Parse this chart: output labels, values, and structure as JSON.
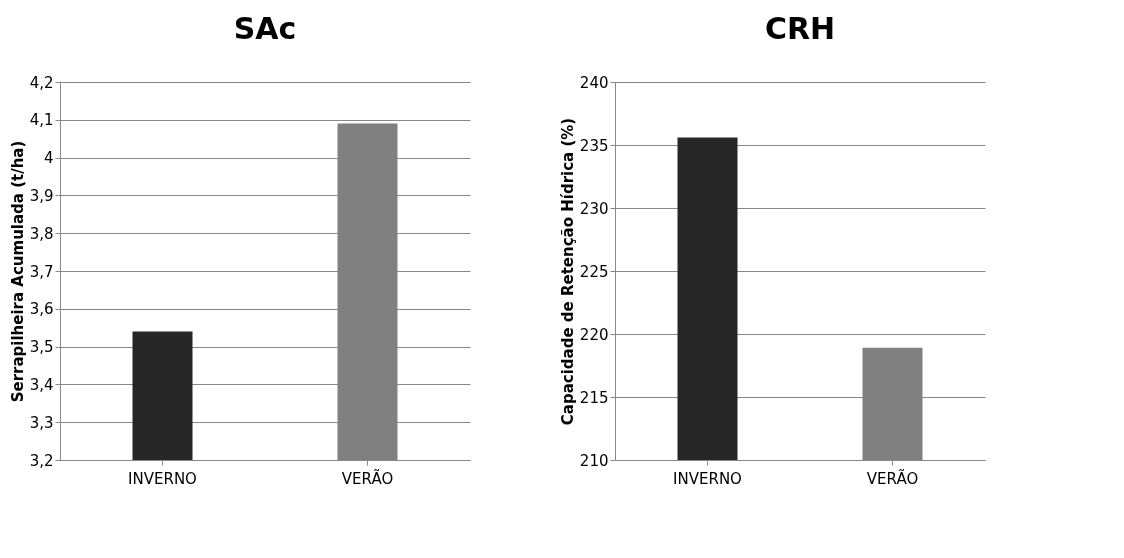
{
  "chart_data": [
    {
      "type": "bar",
      "title": "SAc",
      "ylabel": "Serrapilheira Acumulada (t/ha)",
      "categories": [
        "INVERNO",
        "VERÃO"
      ],
      "values": [
        3.54,
        4.09
      ],
      "colors": [
        "#262626",
        "#808080"
      ],
      "ylim": [
        3.2,
        4.2
      ],
      "yticks": [
        {
          "value": 3.2,
          "label": "3,2"
        },
        {
          "value": 3.3,
          "label": "3,3"
        },
        {
          "value": 3.4,
          "label": "3,4"
        },
        {
          "value": 3.5,
          "label": "3,5"
        },
        {
          "value": 3.6,
          "label": "3,6"
        },
        {
          "value": 3.7,
          "label": "3,7"
        },
        {
          "value": 3.8,
          "label": "3,8"
        },
        {
          "value": 3.9,
          "label": "3,9"
        },
        4,
        {
          "value": 4.1,
          "label": "4,1"
        },
        {
          "value": 4.2,
          "label": "4,2"
        }
      ],
      "grid": "y"
    },
    {
      "type": "bar",
      "title": "CRH",
      "ylabel": "Capacidade de Retenção Hídrica (%)",
      "categories": [
        "INVERNO",
        "VERÃO"
      ],
      "values": [
        235.6,
        218.9
      ],
      "colors": [
        "#262626",
        "#808080"
      ],
      "ylim": [
        210,
        240
      ],
      "yticks": [
        210,
        215,
        220,
        225,
        230,
        235,
        240
      ],
      "grid": "y"
    }
  ]
}
